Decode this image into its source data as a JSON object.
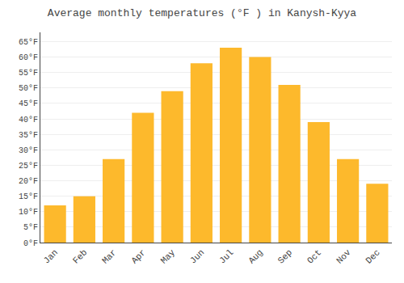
{
  "chart_data": {
    "type": "bar",
    "title": "Average monthly temperatures (°F ) in Kanysh-Kyya",
    "categories": [
      "Jan",
      "Feb",
      "Mar",
      "Apr",
      "May",
      "Jun",
      "Jul",
      "Aug",
      "Sep",
      "Oct",
      "Nov",
      "Dec"
    ],
    "values": [
      12,
      15,
      27,
      42,
      49,
      58,
      63,
      60,
      51,
      39,
      27,
      19
    ],
    "color": "#FDB92C",
    "ylim": [
      0,
      68
    ],
    "yticks": [
      {
        "value": 0,
        "label": "0°F"
      },
      {
        "value": 5,
        "label": "5°F"
      },
      {
        "value": 10,
        "label": "10°F"
      },
      {
        "value": 15,
        "label": "15°F"
      },
      {
        "value": 20,
        "label": "20°F"
      },
      {
        "value": 25,
        "label": "25°F"
      },
      {
        "value": 30,
        "label": "30°F"
      },
      {
        "value": 35,
        "label": "35°F"
      },
      {
        "value": 40,
        "label": "40°F"
      },
      {
        "value": 45,
        "label": "45°F"
      },
      {
        "value": 50,
        "label": "50°F"
      },
      {
        "value": 55,
        "label": "55°F"
      },
      {
        "value": 60,
        "label": "60°F"
      },
      {
        "value": 65,
        "label": "65°F"
      }
    ],
    "grid": true
  }
}
